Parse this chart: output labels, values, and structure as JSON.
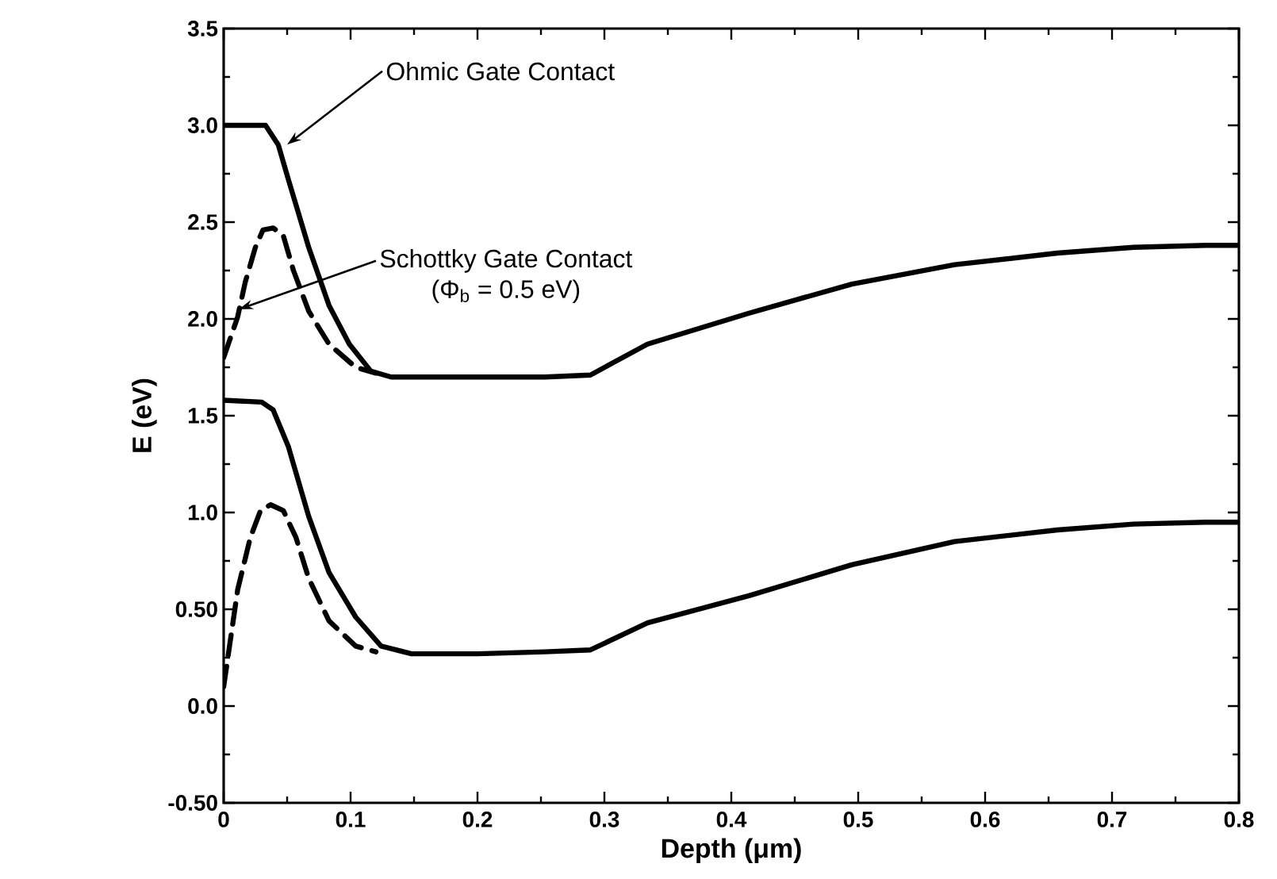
{
  "chart_data": {
    "type": "line",
    "xlabel": "Depth (μm)",
    "ylabel": "E (eV)",
    "xlim": [
      0,
      0.8
    ],
    "ylim": [
      -0.5,
      3.5
    ],
    "xticks": [
      0,
      0.1,
      0.2,
      0.3,
      0.4,
      0.5,
      0.6,
      0.7,
      0.8
    ],
    "yticks": [
      {
        "value": -0.5,
        "label": "-0.50"
      },
      {
        "value": 0,
        "label": "0.0"
      },
      {
        "value": 0.5,
        "label": "0.50"
      },
      {
        "value": 1,
        "label": "1.0"
      },
      {
        "value": 1.5,
        "label": "1.5"
      },
      {
        "value": 2,
        "label": "2.0"
      },
      {
        "value": 2.5,
        "label": "2.5"
      },
      {
        "value": 3,
        "label": "3.0"
      },
      {
        "value": 3.5,
        "label": "3.5"
      }
    ],
    "series": [
      {
        "color": "#000000",
        "line_style": "solid",
        "x": [
          0,
          0.033,
          0.043,
          0.051,
          0.067,
          0.083,
          0.099,
          0.116,
          0.132,
          0.2,
          0.253,
          0.289,
          0.334,
          0.414,
          0.495,
          0.576,
          0.657,
          0.717,
          0.774,
          0.8
        ],
        "values": [
          3.0,
          3.0,
          2.9,
          2.72,
          2.37,
          2.07,
          1.87,
          1.73,
          1.7,
          1.7,
          1.7,
          1.71,
          1.87,
          2.03,
          2.18,
          2.28,
          2.34,
          2.37,
          2.38,
          2.38
        ]
      },
      {
        "color": "#000000",
        "line_style": "solid",
        "x": [
          0,
          0.03,
          0.039,
          0.051,
          0.067,
          0.083,
          0.104,
          0.124,
          0.148,
          0.2,
          0.253,
          0.289,
          0.334,
          0.414,
          0.495,
          0.576,
          0.657,
          0.717,
          0.774,
          0.8
        ],
        "values": [
          1.58,
          1.57,
          1.53,
          1.34,
          0.98,
          0.69,
          0.46,
          0.31,
          0.27,
          0.27,
          0.28,
          0.29,
          0.43,
          0.57,
          0.73,
          0.85,
          0.91,
          0.94,
          0.95,
          0.95
        ]
      },
      {
        "color": "#000000",
        "line_style": "dashed",
        "x": [
          0,
          0.011,
          0.017,
          0.025,
          0.031,
          0.039,
          0.047,
          0.055,
          0.067,
          0.083,
          0.104,
          0.12
        ],
        "values": [
          1.8,
          2.01,
          2.19,
          2.37,
          2.46,
          2.47,
          2.43,
          2.25,
          2.04,
          1.87,
          1.75,
          1.72
        ]
      },
      {
        "color": "#000000",
        "line_style": "dashed",
        "x": [
          0,
          0.011,
          0.021,
          0.029,
          0.037,
          0.047,
          0.057,
          0.067,
          0.083,
          0.104,
          0.12
        ],
        "values": [
          0.1,
          0.6,
          0.87,
          1.01,
          1.04,
          1.01,
          0.87,
          0.66,
          0.44,
          0.31,
          0.28
        ]
      }
    ],
    "annotations": [
      {
        "text": "Ohmic Gate Contact",
        "x": 0.05,
        "y": 2.9
      },
      {
        "text": "Schottky Gate Contact",
        "x": 0.012,
        "y": 2.05
      },
      "(Φ$_{b}$ = 0.5 eV)"
    ],
    "marker": "none"
  }
}
